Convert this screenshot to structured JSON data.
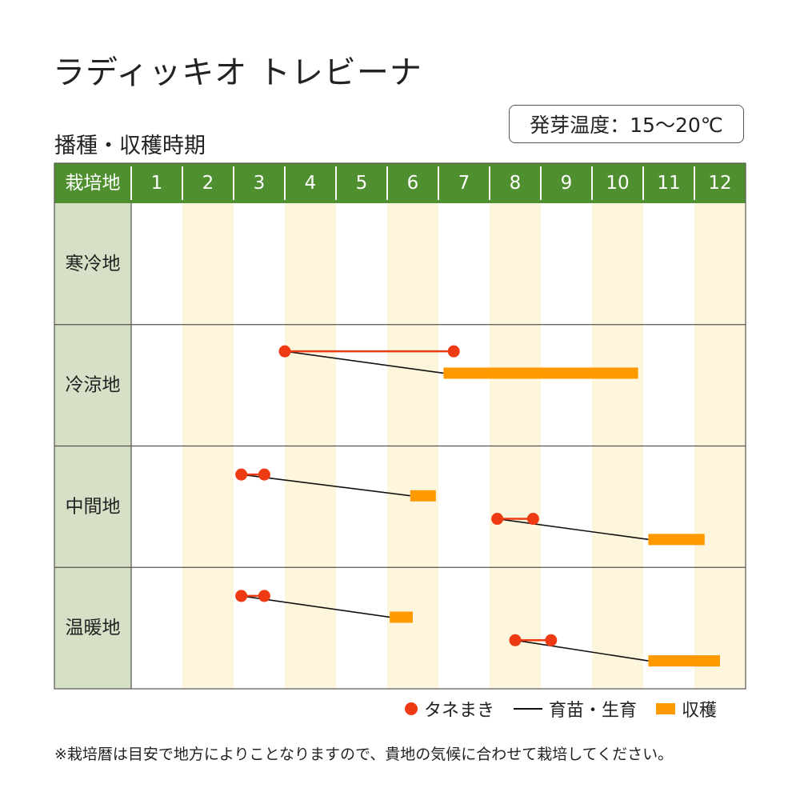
{
  "title": "ラディッキオ トレビーナ",
  "subtitle": "播種・収穫時期",
  "temperature": "発芽温度：15～20℃",
  "colors": {
    "header_green": "#4f8f2f",
    "region_column": "#d6e0c7",
    "stripe": "#fdf5dc",
    "sowing": "#ee3a12",
    "growing": "#111111",
    "harvest": "#ff9900"
  },
  "chart_data": {
    "type": "gantt",
    "header_label": "栽培地",
    "months": [
      "1",
      "2",
      "3",
      "4",
      "5",
      "6",
      "7",
      "8",
      "9",
      "10",
      "11",
      "12"
    ],
    "regions": [
      {
        "name": "寒冷地",
        "schedules": []
      },
      {
        "name": "冷涼地",
        "schedules": [
          {
            "sow": [
              4.0,
              7.3
            ],
            "harvest": [
              7.1,
              10.9
            ]
          }
        ]
      },
      {
        "name": "中間地",
        "schedules": [
          {
            "sow": [
              3.15,
              3.6
            ],
            "harvest": [
              6.45,
              6.95
            ]
          },
          {
            "sow": [
              8.15,
              8.85
            ],
            "harvest": [
              11.1,
              12.2
            ]
          }
        ]
      },
      {
        "name": "温暖地",
        "schedules": [
          {
            "sow": [
              3.15,
              3.6
            ],
            "harvest": [
              6.05,
              6.5
            ]
          },
          {
            "sow": [
              8.5,
              9.2
            ],
            "harvest": [
              11.1,
              12.5
            ]
          }
        ]
      }
    ]
  },
  "legend": {
    "sowing": "タネまき",
    "growing": "育苗・生育",
    "harvest": "収穫"
  },
  "note": "※栽培暦は目安で地方によりことなりますので、貴地の気候に合わせて栽培してください。"
}
